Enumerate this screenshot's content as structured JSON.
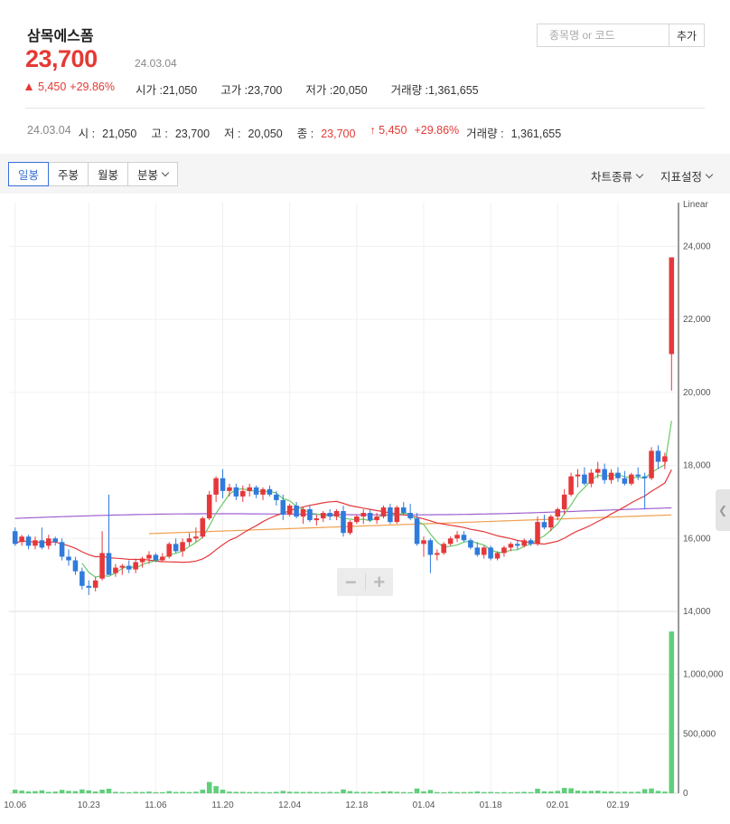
{
  "stock": {
    "name": "삼목에스폼",
    "price": "23,700",
    "date": "24.03.04",
    "change": "5,450",
    "change_pct": "+29.86%",
    "open_label": "시가 :",
    "open": "21,050",
    "high_label": "고가 :",
    "high": "23,700",
    "low_label": "저가 :",
    "low": "20,050",
    "volume_label": "거래량 :",
    "volume": "1,361,655"
  },
  "search": {
    "placeholder": "종목명 or 코드",
    "add_label": "추가"
  },
  "detail": {
    "date": "24.03.04",
    "open_label": "시 :",
    "open": "21,050",
    "high_label": "고 :",
    "high": "23,700",
    "low_label": "저 :",
    "low": "20,050",
    "close_label": "종 :",
    "close": "23,700",
    "change": "↑ 5,450",
    "change_pct": "+29.86%",
    "volume_label": "거래량 :",
    "volume": "1,361,655"
  },
  "toolbar": {
    "tabs": [
      "일봉",
      "주봉",
      "월봉",
      "분봉"
    ],
    "active_tab": 0,
    "chart_type": "차트종류",
    "indicator": "지표설정"
  },
  "chart_data": {
    "type": "candlestick",
    "scale_label": "Linear",
    "price_ticks": [
      14000,
      16000,
      18000,
      20000,
      22000,
      24000
    ],
    "price_tick_labels": [
      "14,000",
      "16,000",
      "18,000",
      "20,000",
      "22,000",
      "24,000"
    ],
    "volume_ticks": [
      0,
      500000,
      1000000
    ],
    "volume_tick_labels": [
      "0",
      "500,000",
      "1,000,000"
    ],
    "x_labels": [
      "10.06",
      "10.23",
      "11.06",
      "11.20",
      "12.04",
      "12.18",
      "01.04",
      "01.18",
      "02.01",
      "02.19"
    ],
    "colors": {
      "up": "#e5383b",
      "down": "#2f7bdc",
      "ma5": "#6ac96a",
      "ma20": "#e5383b",
      "ma60": "#f0a050",
      "ma120": "#a060d0",
      "volume": "#5fcf7a"
    },
    "candles": [
      [
        16200,
        16300,
        15800,
        15850
      ],
      [
        15900,
        16100,
        15800,
        16050
      ],
      [
        16050,
        16100,
        15700,
        15800
      ],
      [
        15800,
        16050,
        15700,
        15950
      ],
      [
        15950,
        16300,
        15700,
        15750
      ],
      [
        15800,
        16100,
        15700,
        16000
      ],
      [
        16000,
        16050,
        15800,
        15900
      ],
      [
        15900,
        16000,
        15400,
        15500
      ],
      [
        15500,
        15700,
        15250,
        15400
      ],
      [
        15400,
        15500,
        15000,
        15100
      ],
      [
        15100,
        15200,
        14600,
        14700
      ],
      [
        14700,
        14850,
        14450,
        14650
      ],
      [
        14650,
        14950,
        14550,
        14850
      ],
      [
        14900,
        16200,
        14850,
        15600
      ],
      [
        15600,
        17200,
        15000,
        15000
      ],
      [
        15050,
        15300,
        14950,
        15200
      ],
      [
        15200,
        15300,
        15000,
        15250
      ],
      [
        15250,
        15400,
        15050,
        15150
      ],
      [
        15150,
        15450,
        15050,
        15350
      ],
      [
        15350,
        15500,
        15200,
        15450
      ],
      [
        15450,
        15650,
        15300,
        15550
      ],
      [
        15550,
        15600,
        15350,
        15400
      ],
      [
        15400,
        15600,
        15350,
        15500
      ],
      [
        15500,
        15900,
        15450,
        15850
      ],
      [
        15850,
        16000,
        15600,
        15650
      ],
      [
        15650,
        16000,
        15500,
        15900
      ],
      [
        15900,
        16150,
        15800,
        16000
      ],
      [
        16000,
        16300,
        15900,
        16050
      ],
      [
        16050,
        16600,
        16000,
        16550
      ],
      [
        16550,
        17300,
        16500,
        17200
      ],
      [
        17200,
        17700,
        17000,
        17650
      ],
      [
        17650,
        17900,
        17100,
        17300
      ],
      [
        17300,
        17500,
        17150,
        17400
      ],
      [
        17400,
        17500,
        17050,
        17150
      ],
      [
        17150,
        17450,
        17000,
        17300
      ],
      [
        17300,
        17500,
        17150,
        17400
      ],
      [
        17400,
        17450,
        17100,
        17200
      ],
      [
        17200,
        17400,
        17050,
        17350
      ],
      [
        17350,
        17450,
        17150,
        17200
      ],
      [
        17200,
        17300,
        16900,
        17050
      ],
      [
        17050,
        17200,
        16500,
        16650
      ],
      [
        16650,
        16950,
        16600,
        16900
      ],
      [
        16900,
        17000,
        16550,
        16600
      ],
      [
        16600,
        16850,
        16400,
        16800
      ],
      [
        16800,
        16900,
        16450,
        16500
      ],
      [
        16500,
        16650,
        16350,
        16550
      ],
      [
        16550,
        16750,
        16450,
        16700
      ],
      [
        16700,
        16800,
        16500,
        16600
      ],
      [
        16600,
        16800,
        16500,
        16750
      ],
      [
        16750,
        16900,
        16050,
        16150
      ],
      [
        16150,
        16500,
        16100,
        16450
      ],
      [
        16450,
        16650,
        16400,
        16600
      ],
      [
        16600,
        16800,
        16400,
        16700
      ],
      [
        16700,
        16800,
        16450,
        16500
      ],
      [
        16500,
        16700,
        16400,
        16600
      ],
      [
        16600,
        16900,
        16550,
        16850
      ],
      [
        16850,
        16950,
        16400,
        16450
      ],
      [
        16450,
        16900,
        16400,
        16850
      ],
      [
        16850,
        17000,
        16650,
        16700
      ],
      [
        16700,
        16950,
        16500,
        16550
      ],
      [
        16550,
        16700,
        15800,
        15850
      ],
      [
        15850,
        16050,
        15500,
        15950
      ],
      [
        15950,
        16000,
        15050,
        15550
      ],
      [
        15550,
        15700,
        15400,
        15600
      ],
      [
        15600,
        15900,
        15550,
        15850
      ],
      [
        15850,
        16050,
        15800,
        16000
      ],
      [
        16000,
        16200,
        15900,
        16100
      ],
      [
        16100,
        16200,
        15900,
        15950
      ],
      [
        15950,
        16000,
        15700,
        15750
      ],
      [
        15750,
        15900,
        15500,
        15550
      ],
      [
        15550,
        15800,
        15450,
        15750
      ],
      [
        15750,
        15800,
        15400,
        15450
      ],
      [
        15450,
        15650,
        15400,
        15600
      ],
      [
        15600,
        15800,
        15500,
        15750
      ],
      [
        15750,
        15900,
        15650,
        15850
      ],
      [
        15850,
        15950,
        15700,
        15800
      ],
      [
        15800,
        16000,
        15750,
        15950
      ],
      [
        15950,
        16000,
        15800,
        15850
      ],
      [
        15850,
        16600,
        15800,
        16450
      ],
      [
        16450,
        16650,
        16250,
        16300
      ],
      [
        16300,
        16650,
        16200,
        16600
      ],
      [
        16600,
        16850,
        16500,
        16800
      ],
      [
        16800,
        17350,
        16650,
        17200
      ],
      [
        17200,
        17800,
        17150,
        17700
      ],
      [
        17700,
        17900,
        17400,
        17750
      ],
      [
        17750,
        17950,
        17450,
        17500
      ],
      [
        17500,
        17900,
        17400,
        17800
      ],
      [
        17800,
        18100,
        17650,
        17900
      ],
      [
        17900,
        18050,
        17500,
        17600
      ],
      [
        17600,
        17900,
        17500,
        17800
      ],
      [
        17800,
        17950,
        17550,
        17650
      ],
      [
        17650,
        17850,
        17450,
        17500
      ],
      [
        17500,
        17800,
        17450,
        17750
      ],
      [
        17750,
        17950,
        17600,
        17700
      ],
      [
        17700,
        17800,
        16800,
        17650
      ],
      [
        17650,
        18500,
        17600,
        18400
      ],
      [
        18400,
        18550,
        17900,
        18100
      ],
      [
        18100,
        18350,
        17900,
        18250
      ],
      [
        21050,
        23700,
        20050,
        23700
      ]
    ],
    "volumes": [
      30000,
      22000,
      15000,
      18000,
      25000,
      12000,
      14000,
      28000,
      20000,
      18000,
      32000,
      24000,
      15000,
      30000,
      38000,
      12000,
      10000,
      9000,
      12000,
      11000,
      14000,
      9000,
      9000,
      18000,
      11000,
      12000,
      10000,
      13000,
      30000,
      95000,
      60000,
      30000,
      14000,
      12000,
      12000,
      10000,
      11000,
      10000,
      9000,
      12000,
      20000,
      13000,
      12000,
      11000,
      12000,
      10000,
      10000,
      12000,
      10000,
      32000,
      18000,
      12000,
      11000,
      12000,
      9000,
      15000,
      16000,
      12000,
      10000,
      9000,
      40000,
      16000,
      28000,
      10000,
      9000,
      12000,
      10000,
      10000,
      11000,
      15000,
      10000,
      11000,
      9000,
      10000,
      9000,
      10000,
      12000,
      10000,
      38000,
      16000,
      15000,
      20000,
      45000,
      42000,
      22000,
      18000,
      20000,
      22000,
      15000,
      15000,
      12000,
      13000,
      12000,
      13000,
      35000,
      40000,
      20000,
      14000,
      1361655
    ]
  }
}
